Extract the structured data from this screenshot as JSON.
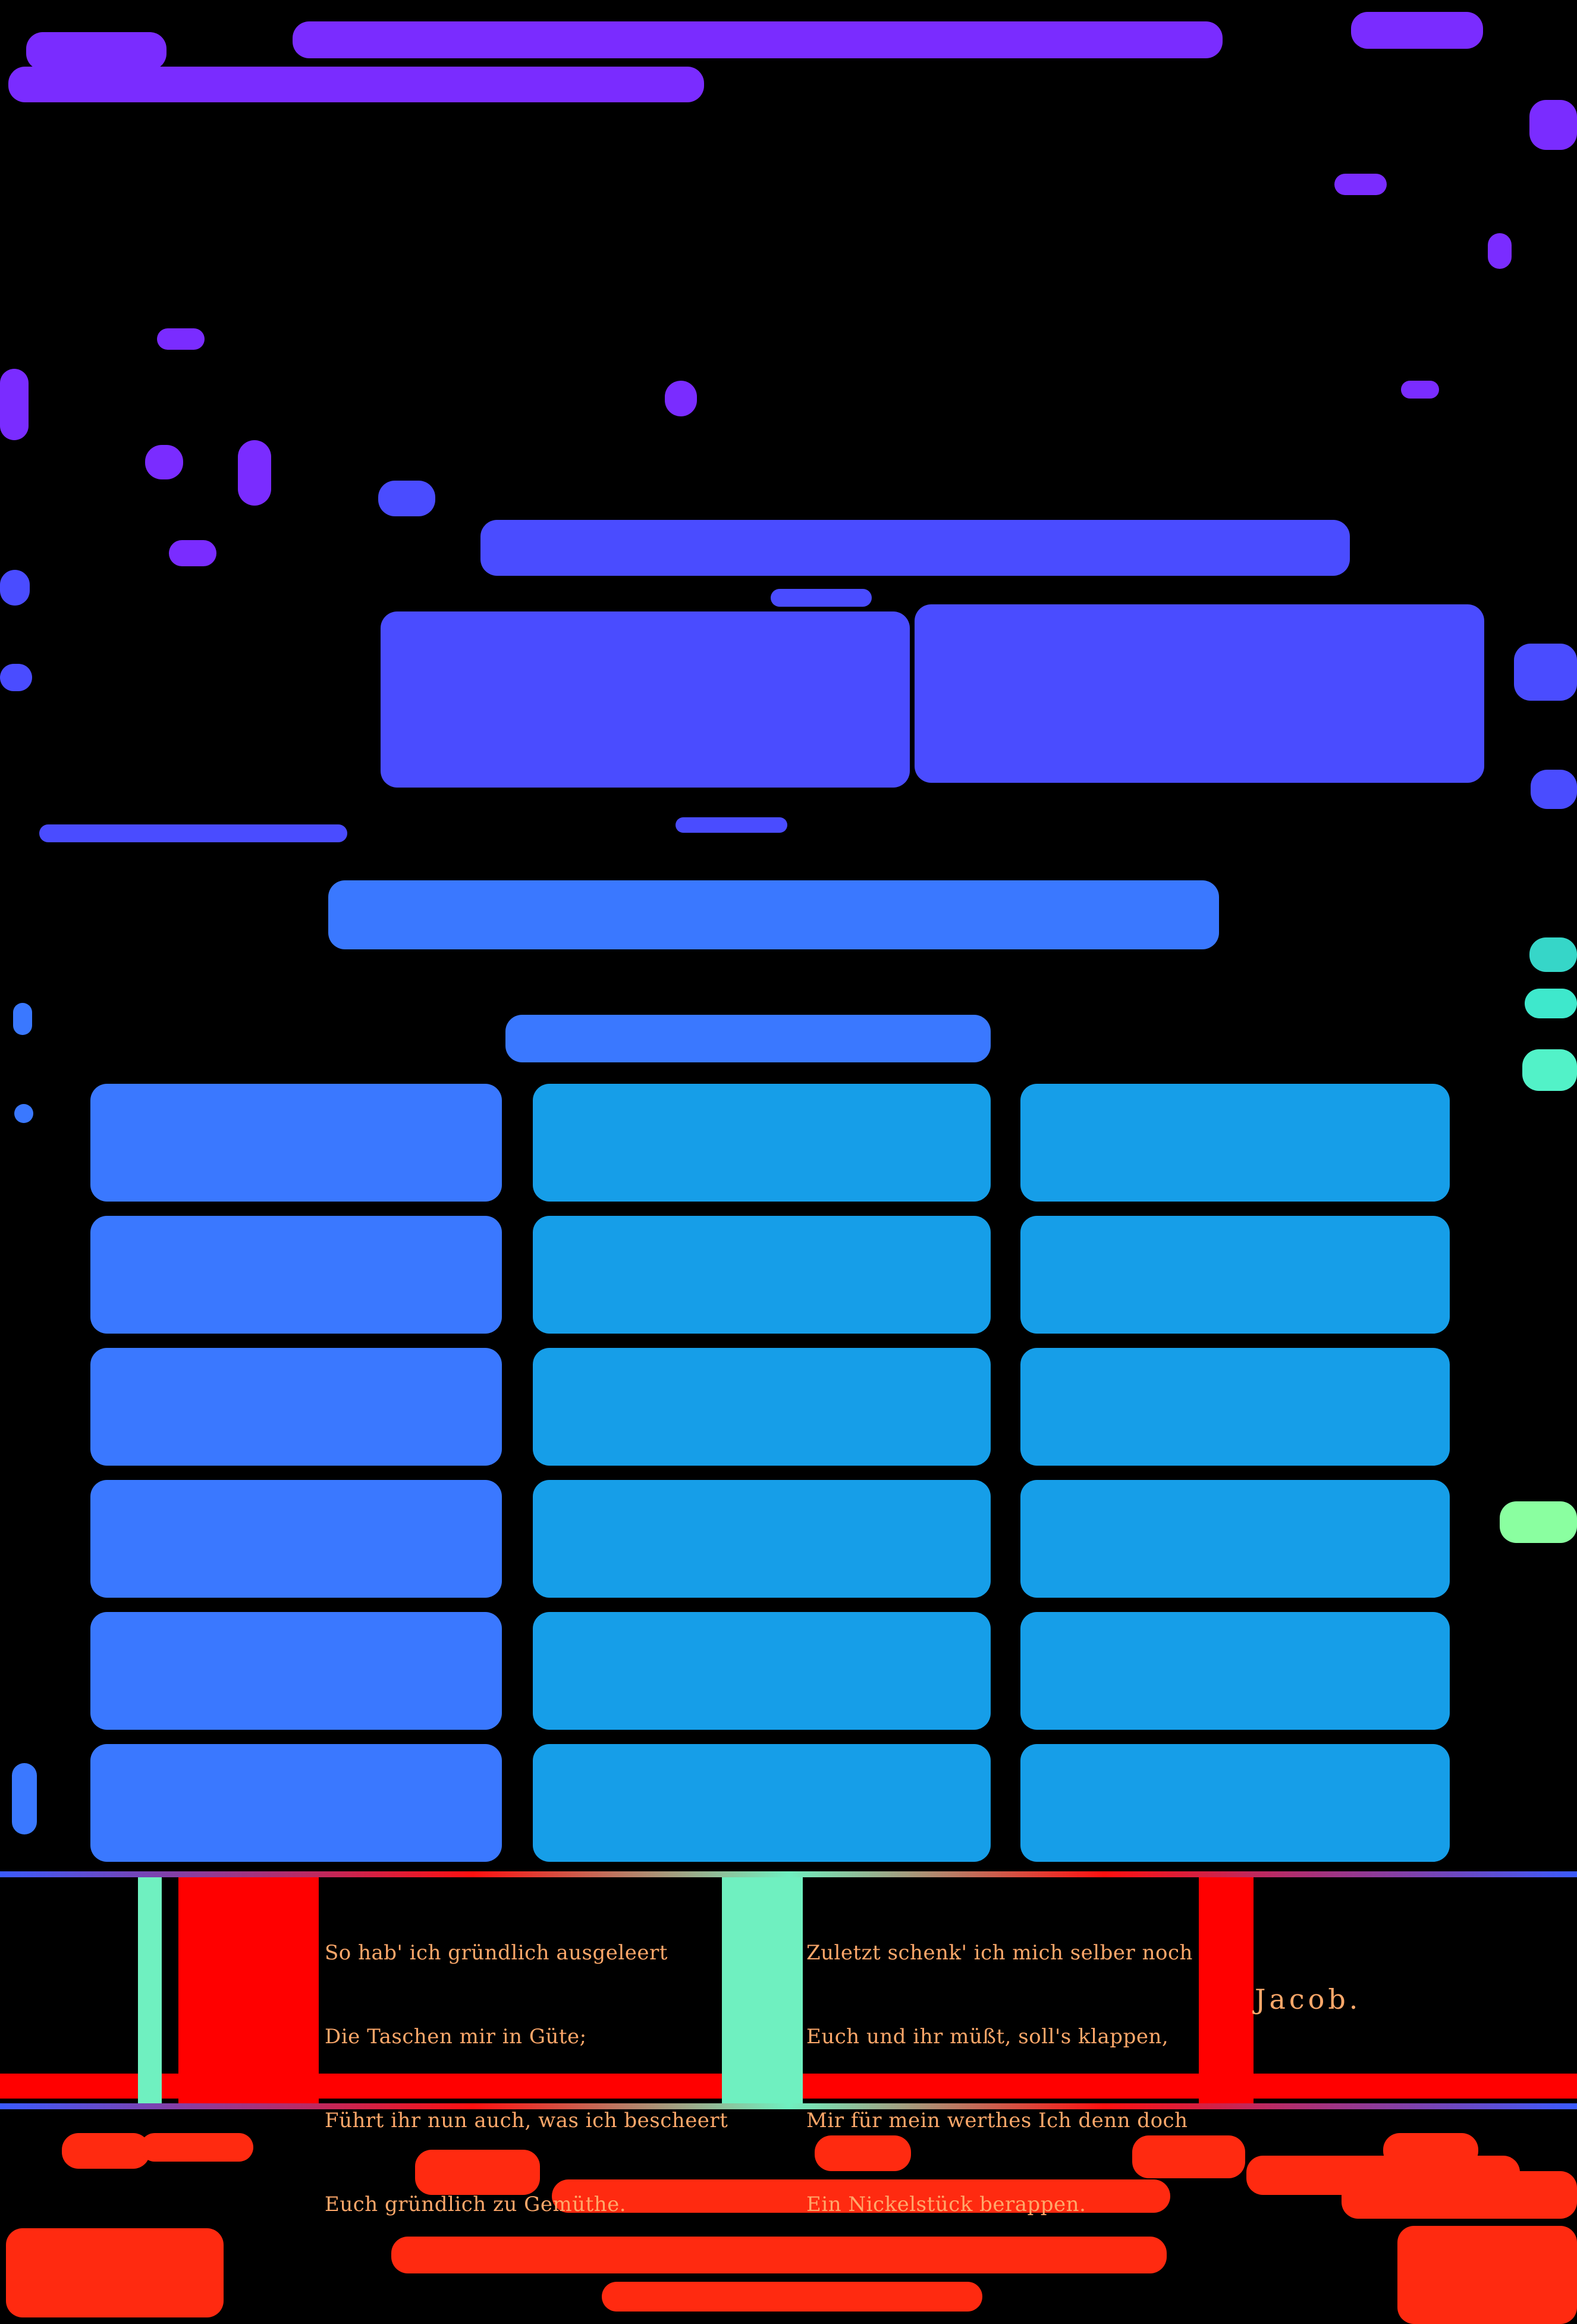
{
  "colors": {
    "background": "#000000",
    "verse_text": "#ffa86a",
    "accent_red": "#ff0000",
    "accent_mint": "#6ff0c0",
    "mask_violet": "#7a2cff",
    "mask_indigo": "#4a4cff",
    "mask_blue": "#3a78ff",
    "mask_sky": "#169ee8",
    "mask_red": "#ff2a10"
  },
  "verse": {
    "left_stanza": [
      "So hab' ich gründlich ausgeleert",
      "Die Taschen mir in Güte;",
      "Führt ihr nun auch, was ich bescheert",
      "Euch gründlich zu Gemüthe."
    ],
    "right_stanza": [
      "Zuletzt schenk' ich mich selber noch",
      "Euch und ihr müßt, soll's klappen,",
      "Mir für mein werthes Ich denn doch",
      "Ein Nickelstück berappen."
    ],
    "signature": "Jacob."
  }
}
